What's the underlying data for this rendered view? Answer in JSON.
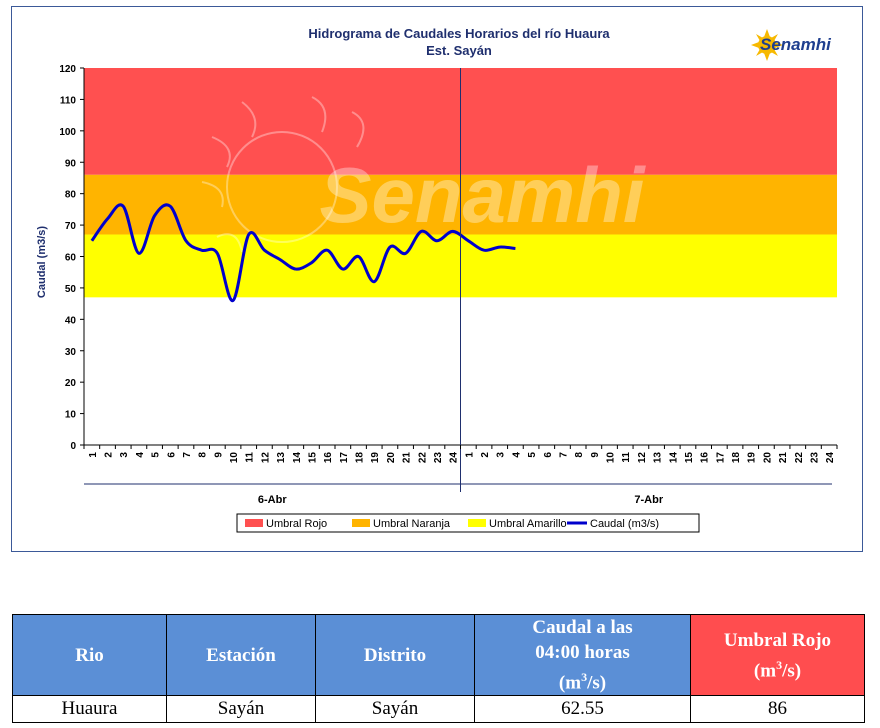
{
  "chart_data": {
    "type": "line",
    "title": "Hidrograma de Caudales Horarios del río Huaura",
    "subtitle": "Est. Sayán",
    "ylabel": "Caudal  (m3/s)",
    "ylim": [
      0,
      120
    ],
    "yticks": [
      0,
      10,
      20,
      30,
      40,
      50,
      60,
      70,
      80,
      90,
      100,
      110,
      120
    ],
    "xlabels": [
      "1",
      "2",
      "3",
      "4",
      "5",
      "6",
      "7",
      "8",
      "9",
      "10",
      "11",
      "12",
      "13",
      "14",
      "15",
      "16",
      "17",
      "18",
      "19",
      "20",
      "21",
      "22",
      "23",
      "24",
      "1",
      "2",
      "3",
      "4",
      "5",
      "6",
      "7",
      "8",
      "9",
      "10",
      "11",
      "12",
      "13",
      "14",
      "15",
      "16",
      "17",
      "18",
      "19",
      "20",
      "21",
      "22",
      "23",
      "24"
    ],
    "days": [
      "6-Abr",
      "7-Abr"
    ],
    "thresholds": [
      {
        "name": "Umbral Rojo",
        "color": "#ff5050",
        "from": 86,
        "to": 120
      },
      {
        "name": "Umbral Naranja",
        "color": "#ffb400",
        "from": 67,
        "to": 86
      },
      {
        "name": "Umbral Amarillo",
        "color": "#ffff00",
        "from": 47,
        "to": 67
      }
    ],
    "series": [
      {
        "name": "Caudal (m3/s)",
        "color": "#0000cc",
        "x": [
          1,
          2,
          3,
          4,
          5,
          6,
          7,
          8,
          9,
          10,
          11,
          12,
          13,
          14,
          15,
          16,
          17,
          18,
          19,
          20,
          21,
          22,
          23,
          24,
          25,
          26,
          27,
          28
        ],
        "values": [
          65,
          72,
          76,
          61,
          73,
          76,
          65,
          62,
          61,
          46,
          67,
          62,
          59,
          56,
          58,
          62,
          56,
          60,
          52,
          63,
          61,
          68,
          65,
          68,
          65,
          62,
          63,
          62.55
        ]
      }
    ],
    "grid": false,
    "legend_position": "bottom"
  },
  "watermark": "Senamhi",
  "logo": {
    "text": "Senamhi",
    "color": "#1f3f8f",
    "accent": "#f7b900"
  },
  "table": {
    "headers": {
      "rio": "Rio",
      "estacion": "Estación",
      "distrito": "Distrito",
      "caudal_line1": "Caudal a las",
      "caudal_line2": "04:00 horas",
      "caudal_unit": "(m3/s)",
      "umbral_line1": "Umbral Rojo",
      "umbral_unit": "(m3/s)"
    },
    "row": {
      "rio": "Huaura",
      "estacion": "Sayán",
      "distrito": "Sayán",
      "caudal": "62.55",
      "umbral": "86"
    }
  }
}
